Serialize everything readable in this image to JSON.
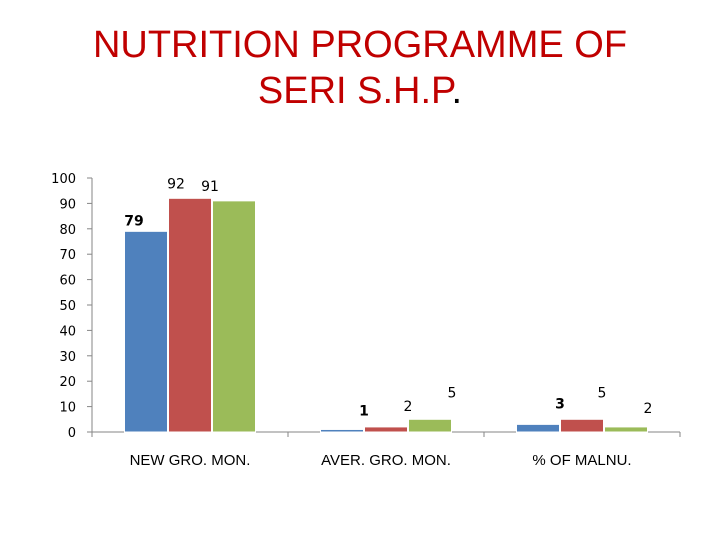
{
  "title_main": "NUTRITION PROGRAMME OF",
  "title_line2": "SERI S.H.P",
  "title_dot": ".",
  "chart_data": {
    "type": "bar",
    "categories": [
      "NEW GRO. MON.",
      "AVER. GRO. MON.",
      "% OF MALNU."
    ],
    "series": [
      {
        "values": [
          79,
          1,
          3
        ],
        "color": "#4f81bd"
      },
      {
        "values": [
          92,
          2,
          5
        ],
        "color": "#c0504d"
      },
      {
        "values": [
          91,
          5,
          2
        ],
        "color": "#9bbb59"
      }
    ],
    "ylim": [
      0,
      100
    ],
    "yticks": [
      0,
      10,
      20,
      30,
      40,
      50,
      60,
      70,
      80,
      90,
      100
    ],
    "grid": false,
    "legend": "none"
  }
}
